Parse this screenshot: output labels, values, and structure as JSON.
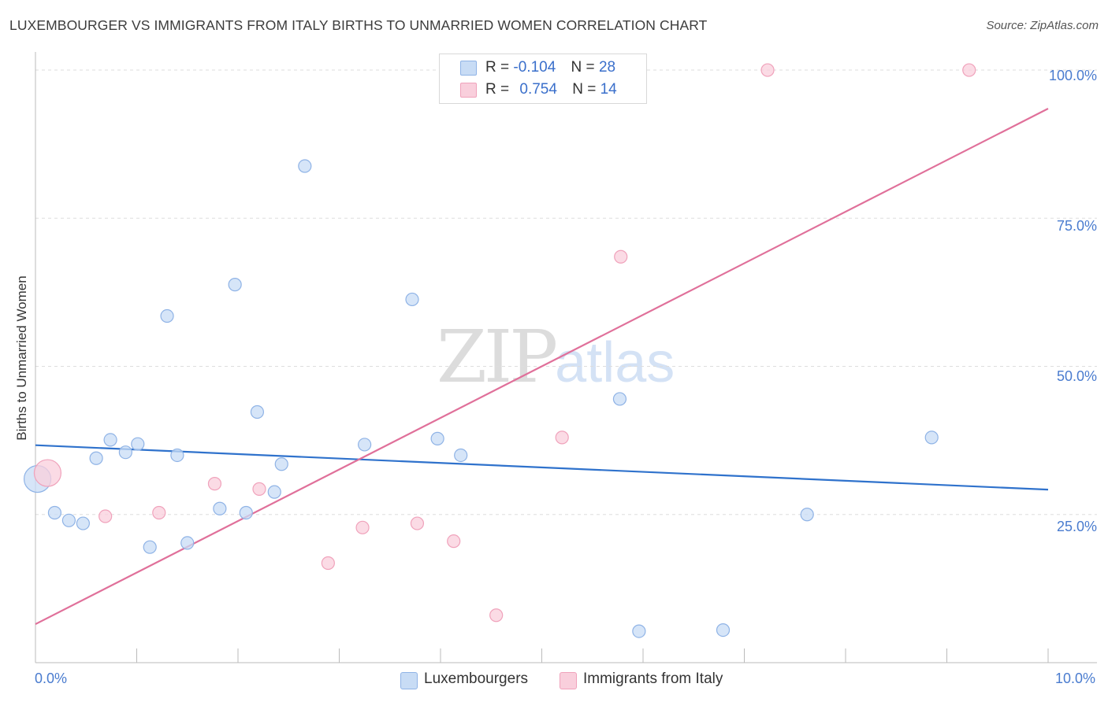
{
  "header": {
    "title": "LUXEMBOURGER VS IMMIGRANTS FROM ITALY BIRTHS TO UNMARRIED WOMEN CORRELATION CHART",
    "source": "Source: ZipAtlas.com"
  },
  "watermark": {
    "zip": "ZIP",
    "atlas": "atlas"
  },
  "legend": {
    "rows": [
      {
        "r_label": "R =",
        "r_value": "-0.104",
        "n_label": "N =",
        "n_value": "28"
      },
      {
        "r_label": "R =",
        "r_value": "0.754",
        "n_label": "N =",
        "n_value": "14"
      }
    ]
  },
  "bottom_legend": {
    "series1": "Luxembourgers",
    "series2": "Immigrants from Italy"
  },
  "chart_data": {
    "type": "scatter",
    "title": "LUXEMBOURGER VS IMMIGRANTS FROM ITALY BIRTHS TO UNMARRIED WOMEN CORRELATION CHART",
    "xlabel": "",
    "ylabel": "Births to Unmarried Women",
    "xlim": [
      0,
      10
    ],
    "ylim": [
      0,
      102
    ],
    "y_ticks": [
      25,
      50,
      75,
      100
    ],
    "y_tick_labels": [
      "25.0%",
      "50.0%",
      "75.0%",
      "100.0%"
    ],
    "x_tick_labels": [
      "0.0%",
      "10.0%"
    ],
    "grid": true,
    "colors": {
      "series1_fill": "#c8dcf5",
      "series1_stroke": "#8fb3e6",
      "series1_line": "#2f72cc",
      "series2_fill": "#f9cfdc",
      "series2_stroke": "#f0a2bb",
      "series2_line": "#e0709a",
      "tick_text": "#4a7ccf",
      "grid": "#dddddd"
    },
    "series": [
      {
        "name": "Luxembourgers",
        "r": -0.104,
        "n": 28,
        "trend": {
          "x": [
            0,
            10
          ],
          "y": [
            36.7,
            29.2
          ]
        },
        "points": [
          {
            "x": 0.02,
            "y": 31.0,
            "big": true
          },
          {
            "x": 0.19,
            "y": 25.3
          },
          {
            "x": 0.33,
            "y": 24.0
          },
          {
            "x": 0.47,
            "y": 23.5
          },
          {
            "x": 0.6,
            "y": 34.5
          },
          {
            "x": 0.74,
            "y": 37.6
          },
          {
            "x": 0.89,
            "y": 35.5
          },
          {
            "x": 1.01,
            "y": 36.9
          },
          {
            "x": 1.13,
            "y": 19.5
          },
          {
            "x": 1.3,
            "y": 58.5
          },
          {
            "x": 1.4,
            "y": 35.0
          },
          {
            "x": 1.5,
            "y": 20.2
          },
          {
            "x": 1.82,
            "y": 26.0
          },
          {
            "x": 1.97,
            "y": 63.8
          },
          {
            "x": 2.08,
            "y": 25.3
          },
          {
            "x": 2.19,
            "y": 42.3
          },
          {
            "x": 2.36,
            "y": 28.8
          },
          {
            "x": 2.43,
            "y": 33.5
          },
          {
            "x": 2.66,
            "y": 83.8
          },
          {
            "x": 3.25,
            "y": 36.8
          },
          {
            "x": 3.72,
            "y": 61.3
          },
          {
            "x": 3.97,
            "y": 37.8
          },
          {
            "x": 4.2,
            "y": 35.0
          },
          {
            "x": 5.77,
            "y": 44.5
          },
          {
            "x": 5.96,
            "y": 5.3
          },
          {
            "x": 6.79,
            "y": 5.5
          },
          {
            "x": 7.62,
            "y": 25.0
          },
          {
            "x": 8.85,
            "y": 38.0
          }
        ]
      },
      {
        "name": "Immigrants from Italy",
        "r": 0.754,
        "n": 14,
        "trend": {
          "x": [
            0,
            10
          ],
          "y": [
            6.5,
            93.5
          ]
        },
        "points": [
          {
            "x": 0.12,
            "y": 32.0,
            "big": true
          },
          {
            "x": 0.69,
            "y": 24.7
          },
          {
            "x": 1.22,
            "y": 25.3
          },
          {
            "x": 1.77,
            "y": 30.2
          },
          {
            "x": 2.21,
            "y": 29.3
          },
          {
            "x": 2.89,
            "y": 16.8
          },
          {
            "x": 3.23,
            "y": 22.8
          },
          {
            "x": 3.77,
            "y": 23.5
          },
          {
            "x": 4.13,
            "y": 20.5
          },
          {
            "x": 4.55,
            "y": 8.0
          },
          {
            "x": 5.2,
            "y": 38.0
          },
          {
            "x": 5.78,
            "y": 68.5
          },
          {
            "x": 7.23,
            "y": 100.0
          },
          {
            "x": 9.22,
            "y": 100.0
          }
        ]
      }
    ]
  }
}
